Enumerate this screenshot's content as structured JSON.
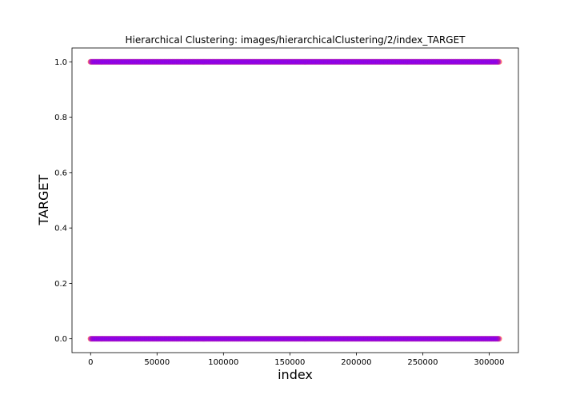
{
  "chart_data": {
    "type": "scatter",
    "title": "Hierarchical Clustering: images/hierarchicalClustering/2/index_TARGET",
    "xlabel": "index",
    "ylabel": "TARGET",
    "xlim": [
      -14000,
      322000
    ],
    "ylim": [
      -0.05,
      1.05
    ],
    "xticks": [
      0,
      50000,
      100000,
      150000,
      200000,
      250000,
      300000
    ],
    "xtick_labels": [
      "0",
      "50000",
      "100000",
      "150000",
      "200000",
      "250000",
      "300000"
    ],
    "yticks": [
      0.0,
      0.2,
      0.4,
      0.6,
      0.8,
      1.0
    ],
    "ytick_labels": [
      "0.0",
      "0.2",
      "0.4",
      "0.6",
      "0.8",
      "1.0"
    ],
    "grid": false,
    "x_range": [
      0,
      307500
    ],
    "y_levels": [
      0,
      1
    ],
    "series": [
      {
        "color": "#ff0000",
        "x_start": 0,
        "x_end": 307500,
        "x_step": 1500,
        "y_values": [
          0,
          1
        ]
      },
      {
        "color": "#7f00ff",
        "x_start": 600,
        "x_end": 307500,
        "x_step": 1500,
        "y_values": [
          0,
          1
        ]
      }
    ]
  }
}
